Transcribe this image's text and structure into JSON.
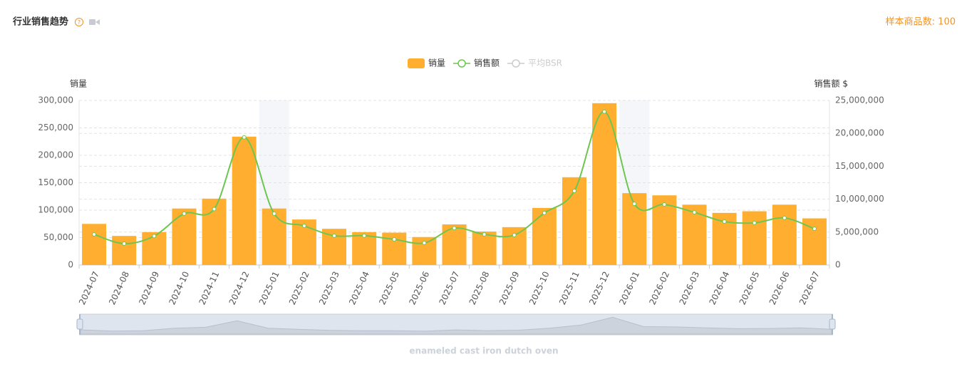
{
  "header": {
    "title": "行业销售趋势",
    "sample_label": "样本商品数: 100"
  },
  "chart_data": {
    "type": "bar-line",
    "categories": [
      "2024-07",
      "2024-08",
      "2024-09",
      "2024-10",
      "2024-11",
      "2024-12",
      "2025-01",
      "2025-02",
      "2025-03",
      "2025-04",
      "2025-05",
      "2025-06",
      "2025-07",
      "2025-08",
      "2025-09",
      "2025-10",
      "2025-11",
      "2025-12",
      "2026-01",
      "2026-02",
      "2026-03",
      "2026-04",
      "2026-05",
      "2026-06",
      "2026-07"
    ],
    "series": [
      {
        "name": "销量",
        "color": "#ffae30",
        "values": [
          75000,
          53000,
          60000,
          103000,
          121000,
          234000,
          103000,
          83000,
          66000,
          60000,
          59000,
          51000,
          74000,
          61000,
          69000,
          104000,
          160000,
          295000,
          131000,
          127000,
          110000,
          95000,
          98000,
          110000,
          85000
        ]
      },
      {
        "name": "销售额",
        "color": "#6cc64f",
        "axis": "y2",
        "values": [
          4650000,
          3250000,
          4400000,
          7800000,
          8500000,
          19400000,
          7800000,
          5950000,
          4450000,
          4450000,
          3900000,
          3350000,
          5600000,
          4650000,
          4550000,
          7900000,
          11250000,
          23300000,
          9300000,
          9200000,
          8000000,
          6600000,
          6400000,
          7150000,
          5500000
        ]
      },
      {
        "name": "平均BSR",
        "color": "#cccccc",
        "hidden": true,
        "values": [
          null,
          null,
          null,
          null,
          null,
          null,
          null,
          null,
          null,
          null,
          null,
          null,
          null,
          null,
          null,
          null,
          null,
          null,
          null,
          null,
          null,
          null,
          null,
          null,
          null
        ]
      }
    ],
    "ylabel": "销量",
    "y2label": "销售额 $",
    "ylim": [
      0,
      300000
    ],
    "yticks": [
      0,
      {
        "value": 50000,
        "label": "50,000"
      },
      {
        "value": 100000,
        "label": "100,000"
      },
      {
        "value": 150000,
        "label": "150,000"
      },
      {
        "value": 200000,
        "label": "200,000"
      },
      {
        "value": 250000,
        "label": "250,000"
      },
      {
        "value": 300000,
        "label": "300,000"
      }
    ],
    "y2lim": [
      0,
      25000000
    ],
    "y2ticks": [
      0,
      {
        "value": 5000000,
        "label": "5,000,000"
      },
      {
        "value": 10000000,
        "label": "10,000,000"
      },
      {
        "value": 15000000,
        "label": "15,000,000"
      },
      {
        "value": 20000000,
        "label": "20,000,000"
      },
      {
        "value": 25000000,
        "label": "25,000,000"
      }
    ],
    "grid": true,
    "legend": "top",
    "zoom_label": "enameled cast iron dutch oven"
  }
}
